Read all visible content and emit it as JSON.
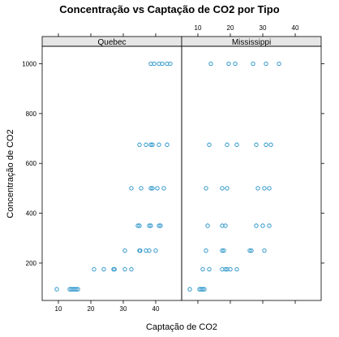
{
  "chart_data": {
    "type": "scatter",
    "title": "Concentração vs Captação de CO2 por Tipo",
    "xlabel": "Captação de CO2",
    "ylabel": "Concentração de CO2",
    "xlim": [
      5,
      48
    ],
    "ylim": [
      50,
      1070
    ],
    "x_ticks": [
      10,
      20,
      30,
      40
    ],
    "y_ticks": [
      200,
      400,
      600,
      800,
      1000
    ],
    "x_tick_labels": [
      "10",
      "20",
      "30",
      "40"
    ],
    "y_tick_labels": [
      "200",
      "400",
      "600",
      "800",
      "1000"
    ],
    "point_color": "#1f8fc7",
    "strip_color": "#e6e6e6",
    "grid": false,
    "legend": "none",
    "panels": [
      {
        "name": "Quebec",
        "points": [
          {
            "x": 9.5,
            "y": 95
          },
          {
            "x": 13.5,
            "y": 95
          },
          {
            "x": 14.0,
            "y": 95
          },
          {
            "x": 14.5,
            "y": 95
          },
          {
            "x": 15.0,
            "y": 95
          },
          {
            "x": 15.5,
            "y": 95
          },
          {
            "x": 16.0,
            "y": 95
          },
          {
            "x": 21.0,
            "y": 175
          },
          {
            "x": 24.0,
            "y": 175
          },
          {
            "x": 27.0,
            "y": 175
          },
          {
            "x": 27.3,
            "y": 175
          },
          {
            "x": 30.5,
            "y": 175
          },
          {
            "x": 32.5,
            "y": 175
          },
          {
            "x": 30.5,
            "y": 250
          },
          {
            "x": 35.0,
            "y": 250
          },
          {
            "x": 35.2,
            "y": 250
          },
          {
            "x": 37.0,
            "y": 250
          },
          {
            "x": 38.0,
            "y": 250
          },
          {
            "x": 40.0,
            "y": 250
          },
          {
            "x": 34.5,
            "y": 350
          },
          {
            "x": 35.0,
            "y": 350
          },
          {
            "x": 38.0,
            "y": 350
          },
          {
            "x": 38.5,
            "y": 350
          },
          {
            "x": 41.0,
            "y": 350
          },
          {
            "x": 41.5,
            "y": 350
          },
          {
            "x": 32.5,
            "y": 500
          },
          {
            "x": 35.5,
            "y": 500
          },
          {
            "x": 38.5,
            "y": 500
          },
          {
            "x": 39.0,
            "y": 500
          },
          {
            "x": 40.5,
            "y": 500
          },
          {
            "x": 42.5,
            "y": 500
          },
          {
            "x": 35.0,
            "y": 675
          },
          {
            "x": 37.0,
            "y": 675
          },
          {
            "x": 38.5,
            "y": 675
          },
          {
            "x": 39.0,
            "y": 675
          },
          {
            "x": 41.0,
            "y": 675
          },
          {
            "x": 43.5,
            "y": 675
          },
          {
            "x": 38.5,
            "y": 1000
          },
          {
            "x": 39.5,
            "y": 1000
          },
          {
            "x": 41.0,
            "y": 1000
          },
          {
            "x": 42.0,
            "y": 1000
          },
          {
            "x": 43.5,
            "y": 1000
          },
          {
            "x": 44.5,
            "y": 1000
          }
        ]
      },
      {
        "name": "Mississippi",
        "points": [
          {
            "x": 7.5,
            "y": 95
          },
          {
            "x": 10.5,
            "y": 95
          },
          {
            "x": 11.0,
            "y": 95
          },
          {
            "x": 11.5,
            "y": 95
          },
          {
            "x": 12.0,
            "y": 95
          },
          {
            "x": 11.5,
            "y": 175
          },
          {
            "x": 13.5,
            "y": 175
          },
          {
            "x": 17.5,
            "y": 175
          },
          {
            "x": 18.5,
            "y": 175
          },
          {
            "x": 19.0,
            "y": 175
          },
          {
            "x": 20.0,
            "y": 175
          },
          {
            "x": 22.0,
            "y": 175
          },
          {
            "x": 12.5,
            "y": 250
          },
          {
            "x": 17.5,
            "y": 250
          },
          {
            "x": 18.0,
            "y": 250
          },
          {
            "x": 26.0,
            "y": 250
          },
          {
            "x": 26.5,
            "y": 250
          },
          {
            "x": 30.5,
            "y": 250
          },
          {
            "x": 13.0,
            "y": 350
          },
          {
            "x": 17.5,
            "y": 350
          },
          {
            "x": 18.5,
            "y": 350
          },
          {
            "x": 28.0,
            "y": 350
          },
          {
            "x": 30.0,
            "y": 350
          },
          {
            "x": 32.0,
            "y": 350
          },
          {
            "x": 12.5,
            "y": 500
          },
          {
            "x": 17.5,
            "y": 500
          },
          {
            "x": 19.0,
            "y": 500
          },
          {
            "x": 28.5,
            "y": 500
          },
          {
            "x": 30.5,
            "y": 500
          },
          {
            "x": 32.0,
            "y": 500
          },
          {
            "x": 13.5,
            "y": 675
          },
          {
            "x": 19.0,
            "y": 675
          },
          {
            "x": 22.0,
            "y": 675
          },
          {
            "x": 28.0,
            "y": 675
          },
          {
            "x": 31.0,
            "y": 675
          },
          {
            "x": 32.5,
            "y": 675
          },
          {
            "x": 14.0,
            "y": 1000
          },
          {
            "x": 19.5,
            "y": 1000
          },
          {
            "x": 21.5,
            "y": 1000
          },
          {
            "x": 27.0,
            "y": 1000
          },
          {
            "x": 31.0,
            "y": 1000
          },
          {
            "x": 35.0,
            "y": 1000
          }
        ]
      }
    ]
  }
}
